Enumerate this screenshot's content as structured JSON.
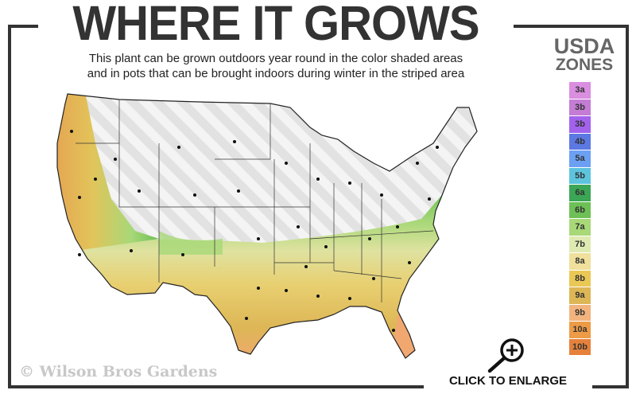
{
  "header": {
    "title": "WHERE IT GROWS",
    "subtitle_line1": "This plant can be grown outdoors year round in the color shaded areas",
    "subtitle_line2": "and in pots that can be brought indoors during winter in the striped area"
  },
  "legend": {
    "title_line1": "USDA",
    "title_line2": "ZONES",
    "zones": [
      {
        "label": "3a",
        "color": "#d98ee0"
      },
      {
        "label": "3b",
        "color": "#c47cd4"
      },
      {
        "label": "3b",
        "color": "#a262ec"
      },
      {
        "label": "4b",
        "color": "#5c78e2"
      },
      {
        "label": "5a",
        "color": "#6ca0f2"
      },
      {
        "label": "5b",
        "color": "#5ec4de"
      },
      {
        "label": "6a",
        "color": "#3ba655"
      },
      {
        "label": "6b",
        "color": "#6dc056"
      },
      {
        "label": "7a",
        "color": "#a8d878"
      },
      {
        "label": "7b",
        "color": "#dfeab2"
      },
      {
        "label": "8a",
        "color": "#efe09c"
      },
      {
        "label": "8b",
        "color": "#eac856"
      },
      {
        "label": "9a",
        "color": "#ddb656"
      },
      {
        "label": "9b",
        "color": "#f1b47e"
      },
      {
        "label": "10a",
        "color": "#ed9b46"
      },
      {
        "label": "10b",
        "color": "#e5813b"
      }
    ]
  },
  "footer": {
    "watermark": "© Wilson Bros Gardens",
    "enlarge_label": "CLICK TO ENLARGE"
  },
  "icons": {
    "enlarge": "magnifier-plus-icon"
  }
}
